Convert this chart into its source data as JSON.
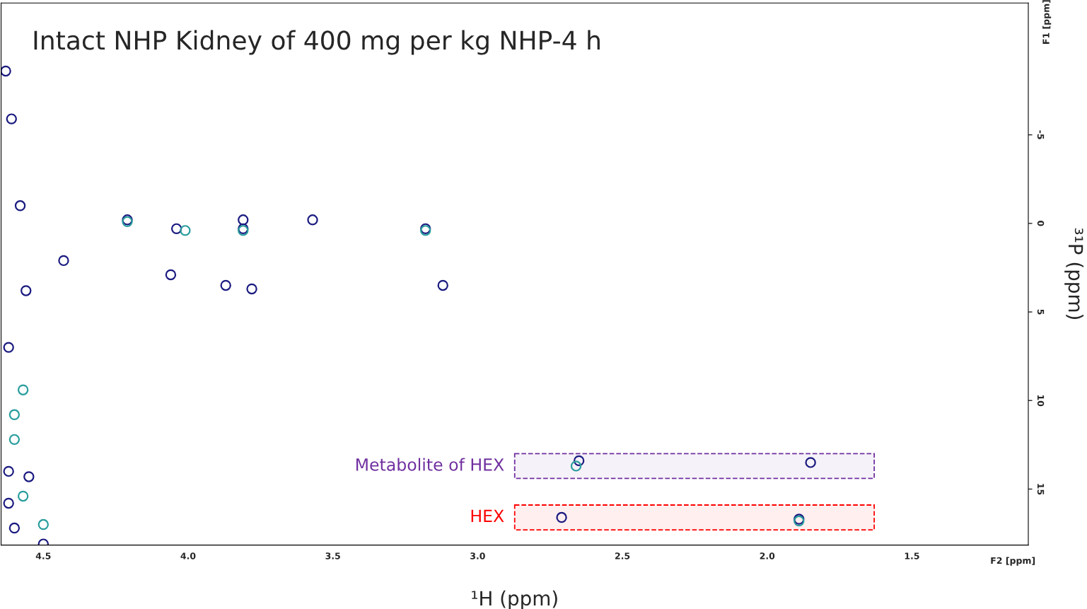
{
  "chart_data": {
    "type": "scatter",
    "title": "Intact NHP Kidney of 400 mg per kg NHP-4 h",
    "xlabel": "¹H (ppm)",
    "ylabel": "³¹P (ppm)",
    "xlim": [
      4.646,
      1.098
    ],
    "ylim": [
      18.16,
      -12.44
    ],
    "xticks": [
      4.5,
      {
        "value": 4,
        "label": "4.0"
      },
      3.5,
      {
        "value": 3,
        "label": "3.0"
      },
      2.5,
      {
        "value": 2,
        "label": "2.0"
      },
      1.5
    ],
    "yticks": [
      -5,
      0,
      5,
      10,
      15
    ],
    "grid": false,
    "marker": "circle",
    "series": [
      {
        "color": "#1a1a80",
        "x": [
          4.21,
          4.04,
          3.81,
          3.81,
          3.57,
          3.18,
          4.43,
          4.06,
          3.87,
          3.78,
          3.12,
          2.65,
          1.85,
          2.71,
          1.89,
          4.63,
          4.61,
          4.58,
          4.56,
          4.62,
          4.62,
          4.55,
          4.62,
          4.6,
          4.5
        ],
        "values": [
          -0.2,
          0.3,
          -0.2,
          0.3,
          -0.2,
          0.3,
          2.1,
          2.9,
          3.5,
          3.7,
          3.5,
          13.4,
          13.5,
          16.6,
          16.7,
          -8.6,
          -5.9,
          -1.0,
          3.8,
          7.0,
          14.0,
          14.3,
          15.8,
          17.2,
          18.1
        ]
      },
      {
        "color": "#2a9d9d",
        "x": [
          4.21,
          4.01,
          3.81,
          3.18,
          2.66,
          1.89,
          4.6,
          4.6,
          4.57,
          4.5,
          4.57
        ],
        "values": [
          -0.1,
          0.4,
          0.4,
          0.4,
          13.7,
          16.8,
          10.8,
          12.2,
          15.4,
          17.0,
          9.4
        ]
      }
    ],
    "bands": [
      {
        "axis": "y",
        "from": 13.0,
        "to": 14.4,
        "label": "Metabolite of HEX",
        "color": "#7030a0"
      },
      {
        "axis": "y",
        "from": 15.9,
        "to": 17.3,
        "label": "HEX",
        "color": "#ff0000"
      }
    ],
    "annotations": [
      "F2 [ppm]",
      "F1 [ppm]"
    ]
  }
}
